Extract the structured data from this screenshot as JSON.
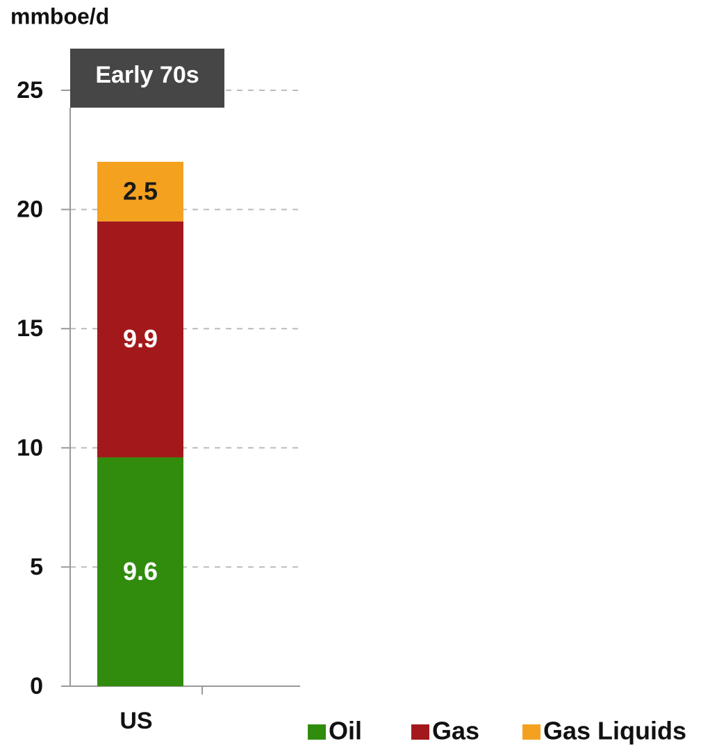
{
  "chart_data": {
    "type": "stacked_bar",
    "y_axis_label": "mmboe/d",
    "annotation": "Early 70s",
    "categories": [
      "US"
    ],
    "series": [
      {
        "name": "Oil",
        "color": "#318c0e",
        "label_color": "#ffffff",
        "values": [
          9.6
        ]
      },
      {
        "name": "Gas",
        "color": "#a3181b",
        "label_color": "#ffffff",
        "values": [
          9.9
        ]
      },
      {
        "name": "Gas Liquids",
        "color": "#f4a11f",
        "label_color": "#1a1a1a",
        "values": [
          2.5
        ]
      }
    ],
    "ylim": [
      0,
      25
    ],
    "yticks": [
      0,
      5,
      10,
      15,
      20,
      25
    ],
    "grid": true,
    "legend": "bottom-right"
  }
}
